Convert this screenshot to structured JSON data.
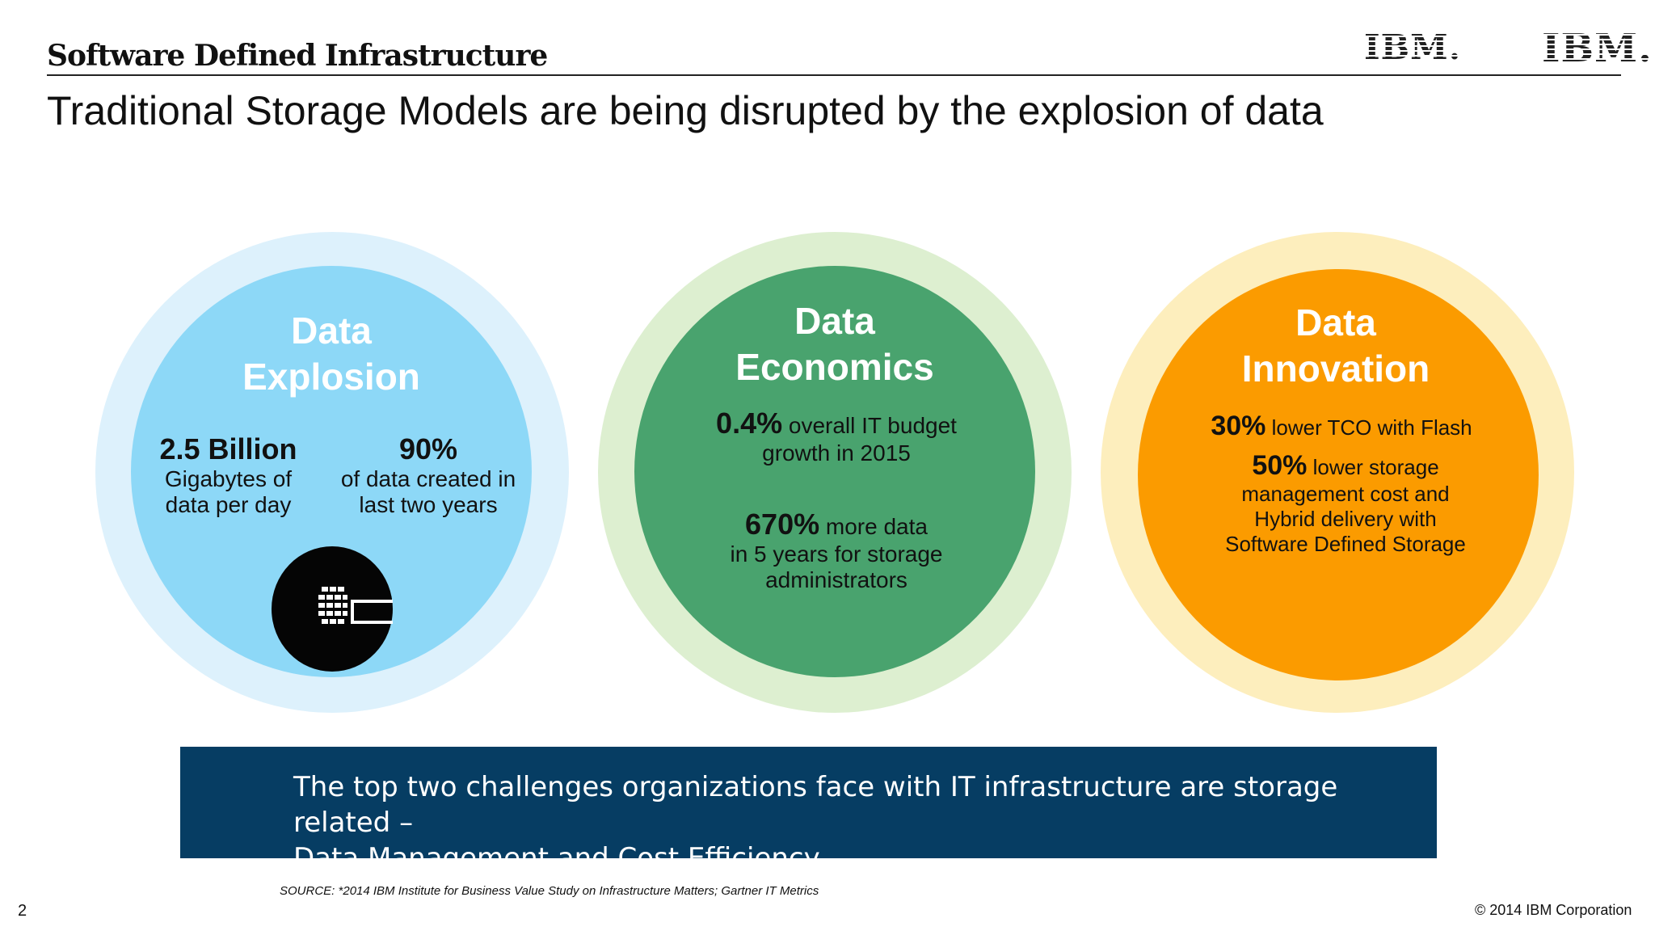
{
  "header": {
    "section_title": "Software Defined Infrastructure",
    "logo_left": "IBM.",
    "logo_right": "IBM."
  },
  "slide": {
    "title": "Traditional Storage Models are being disrupted by the explosion of data"
  },
  "circles": {
    "explosion": {
      "title_line1": "Data",
      "title_line2": "Explosion",
      "stat1_value": "2.5 Billion",
      "stat1_line1": "Gigabytes of",
      "stat1_line2": "data per day",
      "stat2_value": "90%",
      "stat2_line1": "of data created in",
      "stat2_line2": "last two years",
      "icon": "storage-disk-icon",
      "colors": {
        "outer": "#ddf1fc",
        "inner": "#8dd8f7"
      }
    },
    "economics": {
      "title_line1": "Data",
      "title_line2": "Economics",
      "stat1_value": "0.4%",
      "stat1_text": " overall IT budget",
      "stat1_line2": "growth in 2015",
      "stat2_value": "670%",
      "stat2_text": " more data",
      "stat2_line2": "in 5 years for storage",
      "stat2_line3": "administrators",
      "colors": {
        "outer": "#ddefd0",
        "inner": "#49a36e"
      }
    },
    "innovation": {
      "title_line1": "Data",
      "title_line2": "Innovation",
      "stat1_value": "30%",
      "stat1_text": " lower TCO with Flash",
      "stat2_value": "50%",
      "stat2_text": " lower storage",
      "stat2_line2": "management cost and",
      "stat2_line3": "Hybrid delivery with",
      "stat2_line4": "Software Defined Storage",
      "colors": {
        "outer": "#fdeebd",
        "inner": "#fb9b00"
      }
    }
  },
  "banner": {
    "line1": "The top two challenges organizations face with IT infrastructure are storage related –",
    "line2": "Data Management and Cost Efficiency",
    "color": "#063d63"
  },
  "footer": {
    "source": "SOURCE: *2014 IBM Institute for Business Value Study on Infrastructure Matters; Gartner IT Metrics",
    "page_number": "2",
    "copyright": "© 2014 IBM Corporation"
  }
}
